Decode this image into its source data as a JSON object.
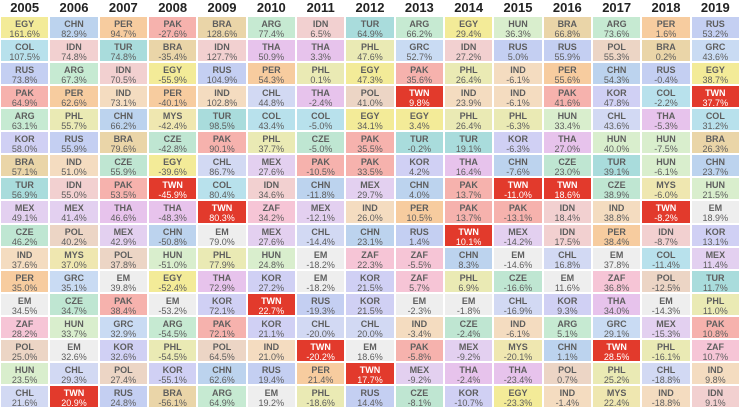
{
  "chart_data": {
    "type": "table",
    "title": "",
    "years": [
      "2005",
      "2006",
      "2007",
      "2008",
      "2009",
      "2010",
      "2011",
      "2012",
      "2013",
      "2014",
      "2015",
      "2016",
      "2017",
      "2018",
      "2019"
    ],
    "highlight_country": "TWN",
    "highlight_color": "#e23a2c",
    "colors": {
      "EGY": "#f3eb98",
      "CHN": "#bcd3ee",
      "PER": "#f7cc9f",
      "COL": "#b8e1ec",
      "BRA": "#ead5a8",
      "ARG": "#c6ead2",
      "TUR": "#a9dcdc",
      "IDN": "#f2d0d0",
      "RUS": "#c4cff2",
      "THA": "#e7c3ec",
      "PHL": "#eaeab4",
      "HUN": "#d9eecd",
      "MEX": "#e3d0f0",
      "ZAF": "#f6c5d6",
      "KOR": "#d0d0f4",
      "CHL": "#d2d9f3",
      "IND": "#f4dcc0",
      "PAK": "#f6b2ad",
      "POL": "#ecd5c5",
      "EM": "#eeeeee",
      "MYS": "#efe7b0",
      "CZE": "#bfe6d2",
      "GRC": "#c9dbf3",
      "TWN": "#e23a2c",
      "QAT": "#f0d6c6",
      "SAU": "#c8e8e8",
      "ARE": "#e0d6f0",
      "NGA": "#d6ecc8"
    },
    "columns": [
      [
        [
          "EGY",
          "161.6%"
        ],
        [
          "COL",
          "107.5%"
        ],
        [
          "RUS",
          "73.8%"
        ],
        [
          "PAK",
          "64.9%"
        ],
        [
          "ARG",
          "63.1%"
        ],
        [
          "KOR",
          "58.0%"
        ],
        [
          "BRA",
          "57.1%"
        ],
        [
          "TUR",
          "56.9%"
        ],
        [
          "MEX",
          "49.1%"
        ],
        [
          "CZE",
          "46.2%"
        ],
        [
          "IND",
          "37.6%"
        ],
        [
          "PER",
          "35.0%"
        ],
        [
          "EM",
          "34.5%"
        ],
        [
          "ZAF",
          "28.2%"
        ],
        [
          "POL",
          "25.0%"
        ],
        [
          "HUN",
          "23.5%"
        ],
        [
          "CHL",
          "21.6%"
        ]
      ],
      [
        [
          "CHN",
          "82.9%"
        ],
        [
          "IDN",
          "74.8%"
        ],
        [
          "ARG",
          "67.3%"
        ],
        [
          "PER",
          "62.6%"
        ],
        [
          "PHL",
          "55.7%"
        ],
        [
          "RUS",
          "55.9%"
        ],
        [
          "IND",
          "51.0%"
        ],
        [
          "IDN",
          "55.0%"
        ],
        [
          "MEX",
          "41.4%"
        ],
        [
          "POL",
          "40.2%"
        ],
        [
          "MYS",
          "37.0%"
        ],
        [
          "GRC",
          "35.1%"
        ],
        [
          "CZE",
          "34.7%"
        ],
        [
          "HUN",
          "33.7%"
        ],
        [
          "EM",
          "32.6%"
        ],
        [
          "CHL",
          "29.3%"
        ],
        [
          "TWN",
          "20.9%"
        ]
      ],
      [
        [
          "PER",
          "94.7%"
        ],
        [
          "TUR",
          "74.8%"
        ],
        [
          "IDN",
          "70.5%"
        ],
        [
          "IND",
          "73.1%"
        ],
        [
          "CHN",
          "66.2%"
        ],
        [
          "BRA",
          "79.6%"
        ],
        [
          "CZE",
          "55.9%"
        ],
        [
          "PAK",
          "53.5%"
        ],
        [
          "THA",
          "46.6%"
        ],
        [
          "MEX",
          "42.9%"
        ],
        [
          "POL",
          "37.8%"
        ],
        [
          "EM",
          "39.8%"
        ],
        [
          "PAK",
          "38.4%"
        ],
        [
          "GRC",
          "32.9%"
        ],
        [
          "KOR",
          "32.6%"
        ],
        [
          "POL",
          "27.4%"
        ],
        [
          "RUS",
          "24.8%"
        ]
      ],
      [
        [
          "PAK",
          "-27.6%"
        ],
        [
          "BRA",
          "-35.4%"
        ],
        [
          "EGY",
          "-55.9%"
        ],
        [
          "PER",
          "-40.1%"
        ],
        [
          "MYS",
          "-42.4%"
        ],
        [
          "CZE",
          "-42.8%"
        ],
        [
          "EGY",
          "-39.6%"
        ],
        [
          "TWN",
          "-45.9%"
        ],
        [
          "THA",
          "-48.3%"
        ],
        [
          "CHN",
          "-50.8%"
        ],
        [
          "HUN",
          "-51.0%"
        ],
        [
          "EGY",
          "-52.4%"
        ],
        [
          "EM",
          "-53.2%"
        ],
        [
          "ARG",
          "-54.5%"
        ],
        [
          "PHL",
          "-54.5%"
        ],
        [
          "KOR",
          "-55.1%"
        ],
        [
          "BRA",
          "-56.1%"
        ]
      ],
      [
        [
          "BRA",
          "128.6%"
        ],
        [
          "IDN",
          "127.7%"
        ],
        [
          "RUS",
          "104.9%"
        ],
        [
          "IND",
          "102.8%"
        ],
        [
          "TUR",
          "98.5%"
        ],
        [
          "PAK",
          "90.1%"
        ],
        [
          "CHL",
          "86.7%"
        ],
        [
          "COL",
          "80.4%"
        ],
        [
          "TWN",
          "80.3%"
        ],
        [
          "EM",
          "79.0%"
        ],
        [
          "PHL",
          "77.9%"
        ],
        [
          "THA",
          "72.9%"
        ],
        [
          "KOR",
          "72.1%"
        ],
        [
          "PAK",
          "72.1%"
        ],
        [
          "POL",
          "64.5%"
        ],
        [
          "CHN",
          "62.6%"
        ],
        [
          "ARG",
          "64.9%"
        ]
      ],
      [
        [
          "ARG",
          "77.4%"
        ],
        [
          "THA",
          "50.9%"
        ],
        [
          "PER",
          "54.3%"
        ],
        [
          "CHL",
          "44.8%"
        ],
        [
          "COL",
          "43.4%"
        ],
        [
          "PHL",
          "37.7%"
        ],
        [
          "MEX",
          "27.6%"
        ],
        [
          "IDN",
          "34.6%"
        ],
        [
          "ZAF",
          "34.2%"
        ],
        [
          "MEX",
          "27.6%"
        ],
        [
          "HUN",
          "24.8%"
        ],
        [
          "KOR",
          "27.2%"
        ],
        [
          "TWN",
          "22.7%"
        ],
        [
          "KOR",
          "21.1%"
        ],
        [
          "IND",
          "21.0%"
        ],
        [
          "RUS",
          "19.4%"
        ],
        [
          "EM",
          "19.2%"
        ]
      ],
      [
        [
          "IDN",
          "6.5%"
        ],
        [
          "THA",
          "3.3%"
        ],
        [
          "PHL",
          "0.1%"
        ],
        [
          "THA",
          "-2.4%"
        ],
        [
          "COL",
          "-5.0%"
        ],
        [
          "CZE",
          "-5.0%"
        ],
        [
          "PAK",
          "-10.5%"
        ],
        [
          "CHN",
          "-11.8%"
        ],
        [
          "MEX",
          "-12.1%"
        ],
        [
          "CHL",
          "-14.4%"
        ],
        [
          "EM",
          "-18.2%"
        ],
        [
          "EM",
          "-18.2%"
        ],
        [
          "RUS",
          "-19.3%"
        ],
        [
          "CHL",
          "-20.0%"
        ],
        [
          "TWN",
          "-20.2%"
        ],
        [
          "PER",
          "21.4%"
        ],
        [
          "PHL",
          "-18.6%"
        ]
      ],
      [
        [
          "TUR",
          "64.9%"
        ],
        [
          "PHL",
          "47.6%"
        ],
        [
          "EGY",
          "47.3%"
        ],
        [
          "POL",
          "41.0%"
        ],
        [
          "EGY",
          "34.1%"
        ],
        [
          "PAK",
          "35.5%"
        ],
        [
          "PAK",
          "33.5%"
        ],
        [
          "MEX",
          "29.7%"
        ],
        [
          "IND",
          "26.0%"
        ],
        [
          "CHN",
          "23.1%"
        ],
        [
          "ZAF",
          "22.3%"
        ],
        [
          "KOR",
          "21.5%"
        ],
        [
          "KOR",
          "21.5%"
        ],
        [
          "CHL",
          "20.0%"
        ],
        [
          "EM",
          "18.6%"
        ],
        [
          "TWN",
          "17.7%"
        ],
        [
          "RUS",
          "14.4%"
        ]
      ],
      [
        [
          "ARG",
          "66.2%"
        ],
        [
          "GRC",
          "52.7%"
        ],
        [
          "PAK",
          "35.6%"
        ],
        [
          "TWN",
          "9.8%"
        ],
        [
          "EGY",
          "3.4%"
        ],
        [
          "TUR",
          "-0.2%"
        ],
        [
          "KOR",
          "4.2%"
        ],
        [
          "CHN",
          "4.0%"
        ],
        [
          "PER",
          "10.5%"
        ],
        [
          "RUS",
          "1.4%"
        ],
        [
          "ZAF",
          "-5.5%"
        ],
        [
          "ZAF",
          "5.7%"
        ],
        [
          "EM",
          "-2.3%"
        ],
        [
          "IND",
          "-3.4%"
        ],
        [
          "PAK",
          "-5.8%"
        ],
        [
          "MEX",
          "-9.2%"
        ],
        [
          "CZE",
          "-8.1%"
        ]
      ],
      [
        [
          "EGY",
          "29.4%"
        ],
        [
          "IDN",
          "27.2%"
        ],
        [
          "PHL",
          "26.4%"
        ],
        [
          "IND",
          "23.9%"
        ],
        [
          "PHL",
          "26.4%"
        ],
        [
          "TUR",
          "19.1%"
        ],
        [
          "THA",
          "16.4%"
        ],
        [
          "PAK",
          "13.7%"
        ],
        [
          "PAK",
          "13.7%"
        ],
        [
          "TWN",
          "10.1%"
        ],
        [
          "CHN",
          "8.3%"
        ],
        [
          "PHL",
          "6.9%"
        ],
        [
          "EM",
          "-1.8%"
        ],
        [
          "CZE",
          "-2.4%"
        ],
        [
          "MEX",
          "-9.2%"
        ],
        [
          "THA",
          "-2.4%"
        ],
        [
          "KOR",
          "-10.7%"
        ]
      ],
      [
        [
          "HUN",
          "36.3%"
        ],
        [
          "RUS",
          "5.0%"
        ],
        [
          "IND",
          "-6.1%"
        ],
        [
          "IND",
          "-6.1%"
        ],
        [
          "PHL",
          "-6.3%"
        ],
        [
          "KOR",
          "-6.3%"
        ],
        [
          "CHN",
          "-7.6%"
        ],
        [
          "TWN",
          "-11.0%"
        ],
        [
          "PAK",
          "-13.1%"
        ],
        [
          "MEX",
          "-14.2%"
        ],
        [
          "EM",
          "-14.6%"
        ],
        [
          "CZE",
          "-16.6%"
        ],
        [
          "CHL",
          "-16.9%"
        ],
        [
          "IND",
          "-6.1%"
        ],
        [
          "MYS",
          "-20.1%"
        ],
        [
          "THA",
          "-23.4%"
        ],
        [
          "EGY",
          "-23.3%"
        ]
      ],
      [
        [
          "BRA",
          "66.8%"
        ],
        [
          "RUS",
          "55.9%"
        ],
        [
          "PER",
          "55.6%"
        ],
        [
          "PAK",
          "41.6%"
        ],
        [
          "HUN",
          "33.4%"
        ],
        [
          "THA",
          "27.0%"
        ],
        [
          "CZE",
          "23.0%"
        ],
        [
          "TWN",
          "18.6%"
        ],
        [
          "IDN",
          "18.4%"
        ],
        [
          "IDN",
          "17.5%"
        ],
        [
          "CHL",
          "16.8%"
        ],
        [
          "EM",
          "11.6%"
        ],
        [
          "KOR",
          "9.3%"
        ],
        [
          "ARG",
          "5.1%"
        ],
        [
          "CHN",
          "1.1%"
        ],
        [
          "POL",
          "0.7%"
        ],
        [
          "IND",
          "-1.4%"
        ]
      ],
      [
        [
          "ARG",
          "73.6%"
        ],
        [
          "POL",
          "55.3%"
        ],
        [
          "CHN",
          "54.3%"
        ],
        [
          "KOR",
          "47.8%"
        ],
        [
          "CHL",
          "43.6%"
        ],
        [
          "HUN",
          "40.0%"
        ],
        [
          "TUR",
          "39.1%"
        ],
        [
          "CZE",
          "38.9%"
        ],
        [
          "IND",
          "38.8%"
        ],
        [
          "PER",
          "38.4%"
        ],
        [
          "EM",
          "37.8%"
        ],
        [
          "ZAF",
          "36.8%"
        ],
        [
          "THA",
          "34.0%"
        ],
        [
          "GRC",
          "29.1%"
        ],
        [
          "TWN",
          "28.5%"
        ],
        [
          "PHL",
          "25.2%"
        ],
        [
          "MYS",
          "22.4%"
        ]
      ],
      [
        [
          "PER",
          "1.6%"
        ],
        [
          "BRA",
          "0.2%"
        ],
        [
          "RUS",
          "-0.4%"
        ],
        [
          "COL",
          "-2.2%"
        ],
        [
          "THA",
          "-5.3%"
        ],
        [
          "HUN",
          "-7.5%"
        ],
        [
          "HUN",
          "-6.1%"
        ],
        [
          "MYS",
          "-6.0%"
        ],
        [
          "TWN",
          "-8.2%"
        ],
        [
          "IDN",
          "-8.7%"
        ],
        [
          "COL",
          "-11.4%"
        ],
        [
          "POL",
          "-12.5%"
        ],
        [
          "EM",
          "-14.3%"
        ],
        [
          "MEX",
          "-15.3%"
        ],
        [
          "PHL",
          "-16.1%"
        ],
        [
          "CHL",
          "-18.8%"
        ],
        [
          "IND",
          "-18.8%"
        ]
      ],
      [
        [
          "RUS",
          "53.2%"
        ],
        [
          "GRC",
          "43.6%"
        ],
        [
          "EGY",
          "38.7%"
        ],
        [
          "TWN",
          "37.7%"
        ],
        [
          "COL",
          "31.2%"
        ],
        [
          "BRA",
          "26.3%"
        ],
        [
          "CHN",
          "23.7%"
        ],
        [
          "HUN",
          "21.5%"
        ],
        [
          "EM",
          "18.9%"
        ],
        [
          "KOR",
          "13.1%"
        ],
        [
          "MEX",
          "11.4%"
        ],
        [
          "TUR",
          "11.7%"
        ],
        [
          "PHL",
          "11.0%"
        ],
        [
          "PAK",
          "10.8%"
        ],
        [
          "ZAF",
          "10.7%"
        ],
        [
          "IND",
          "9.8%"
        ],
        [
          "IDN",
          "9.1%"
        ]
      ]
    ]
  }
}
